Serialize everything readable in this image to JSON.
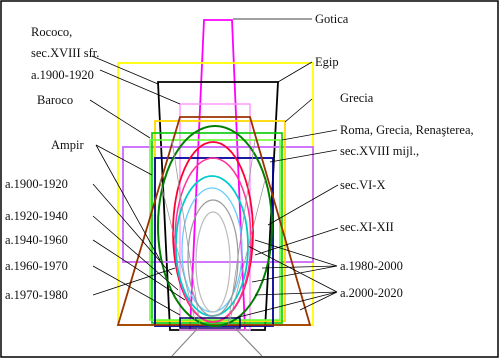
{
  "labels": {
    "gotica": "Gotica",
    "rococo_1": "Rococo,",
    "rococo_2": "sec.XVIII sfr.",
    "a1900_1920_top": "a.1900-1920",
    "egip": "Egip",
    "baroco": "Baroco",
    "grecia": "Grecia",
    "ampir": "Ampir",
    "roma_1": "Roma, Grecia, Renaşterea,",
    "roma_2": "sec.XVIII mijl.,",
    "a1900_1920": "a.1900-1920",
    "sec_vi_x": "sec.VI-X",
    "a1920_1940": "a.1920-1940",
    "sec_xi_xii": "sec.XI-XII",
    "a1940_1960": "a.1940-1960",
    "a1980_2000": "a.1980-2000",
    "a1960_1970": "a.1960-1970",
    "a2000_2020": "a.2000-2020",
    "a1970_1980": "a.1970-1980"
  },
  "colors": {
    "gotica": "#ff00ff",
    "egip": "#000000",
    "rococo": "#ffff00",
    "a1900_1920_top": "#ff66ff",
    "baroco": "#cc66ff",
    "grecia": "#ffd700",
    "ampir": "#00cc66",
    "roma": "#66ff33",
    "sec_vi_x": "#000099",
    "sec_xi_xii": "#ff0066",
    "a1920_1940": "#00cccc",
    "brown": "#993300",
    "green_ellipse": "#008000",
    "leader": "#000000",
    "grey": "#999999"
  }
}
